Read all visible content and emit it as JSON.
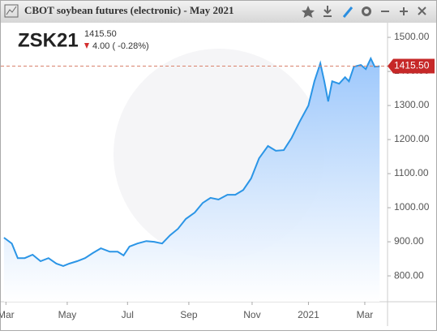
{
  "window_title": "CBOT soybean futures (electronic) - May 2021",
  "quote": {
    "symbol": "ZSK21",
    "price": "1415.50",
    "change": "4.00 ( -0.28%)"
  },
  "chart_data": {
    "type": "area",
    "color": "#2b95e6",
    "x": [
      0,
      8,
      14,
      21,
      29,
      37,
      45,
      53,
      60,
      66,
      74,
      82,
      90,
      98,
      107,
      115,
      121,
      127,
      135,
      144,
      152,
      160,
      168,
      176,
      184,
      193,
      201,
      209,
      217,
      226,
      234,
      242,
      250,
      258,
      267,
      275,
      283,
      291,
      299,
      308,
      314,
      320,
      324,
      328,
      332,
      339,
      345,
      349,
      354,
      361,
      366,
      371,
      375,
      380
    ],
    "values": [
      912,
      895,
      852,
      852,
      862,
      843,
      852,
      836,
      829,
      836,
      843,
      852,
      867,
      881,
      871,
      871,
      860,
      886,
      895,
      902,
      900,
      895,
      919,
      938,
      967,
      986,
      1014,
      1029,
      1024,
      1038,
      1038,
      1052,
      1086,
      1145,
      1181,
      1167,
      1169,
      1205,
      1252,
      1300,
      1371,
      1424,
      1371,
      1312,
      1371,
      1364,
      1383,
      1371,
      1414,
      1419,
      1407,
      1438,
      1414,
      1415.5
    ],
    "xlim": [
      -4,
      388
    ],
    "xticks": [
      {
        "value": 2,
        "label": "Mar"
      },
      {
        "value": 64,
        "label": "May"
      },
      {
        "value": 125,
        "label": "Jul"
      },
      {
        "value": 187,
        "label": "Sep"
      },
      {
        "value": 251,
        "label": "Nov"
      },
      {
        "value": 308,
        "label": "2021"
      },
      {
        "value": 365,
        "label": "Mar"
      }
    ],
    "ylim": [
      724,
      1543
    ],
    "yticks": [
      {
        "value": 800,
        "label": "800.00"
      },
      {
        "value": 900,
        "label": "900.00"
      },
      {
        "value": 1000,
        "label": "1000.00"
      },
      {
        "value": 1100,
        "label": "1100.00"
      },
      {
        "value": 1200,
        "label": "1200.00"
      },
      {
        "value": 1300,
        "label": "1300.00"
      },
      {
        "value": 1400,
        "label": "1400.00"
      },
      {
        "value": 1500,
        "label": "1500.00"
      }
    ],
    "last_price": {
      "value": 1415.5,
      "label": "1415.50"
    },
    "last_price_color": "#c62828"
  }
}
